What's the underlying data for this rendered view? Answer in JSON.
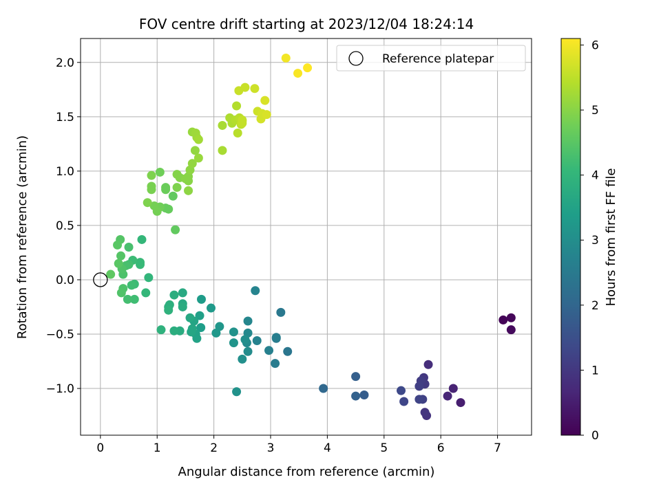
{
  "chart_data": {
    "type": "scatter",
    "title": "FOV centre drift starting at 2023/12/04 18:24:14",
    "xlabel": "Angular distance from reference (arcmin)",
    "ylabel": "Rotation from reference (arcmin)",
    "xlim": [
      -0.35,
      7.6
    ],
    "ylim": [
      -1.43,
      2.22
    ],
    "xticks": [
      0,
      1,
      2,
      3,
      4,
      5,
      6,
      7
    ],
    "xtick_labels": [
      "0",
      "1",
      "2",
      "3",
      "4",
      "5",
      "6",
      "7"
    ],
    "yticks": [
      -1.0,
      -0.5,
      0.0,
      0.5,
      1.0,
      1.5,
      2.0
    ],
    "ytick_labels": [
      "−1.0",
      "−0.5",
      "0.0",
      "0.5",
      "1.0",
      "1.5",
      "2.0"
    ],
    "grid": true,
    "legend": {
      "position": "top-right",
      "entries": [
        "Reference platepar"
      ]
    },
    "reference_point": {
      "x": 0,
      "y": 0,
      "label": "Reference platepar"
    },
    "colorbar": {
      "label": "Hours from first FF file",
      "colormap": "viridis",
      "range": [
        0,
        6.1
      ],
      "ticks": [
        0,
        1,
        2,
        3,
        4,
        5,
        6
      ],
      "tick_labels": [
        "0",
        "1",
        "2",
        "3",
        "4",
        "5",
        "6"
      ]
    },
    "colors": {
      "viridis": [
        "#440154",
        "#482878",
        "#3e4989",
        "#31688e",
        "#26828e",
        "#1f9e89",
        "#35b779",
        "#6ece58",
        "#b5de2b",
        "#fde725"
      ],
      "grid": "#b0b0b0",
      "reference_marker": "#000000"
    },
    "series": [
      {
        "points": [
          {
            "x": 7.1,
            "y": -0.37,
            "h": 0.05
          },
          {
            "x": 7.24,
            "y": -0.35,
            "h": 0.1
          },
          {
            "x": 7.24,
            "y": -0.46,
            "h": 0.15
          },
          {
            "x": 6.35,
            "y": -1.13,
            "h": 0.5
          },
          {
            "x": 6.22,
            "y": -1.0,
            "h": 0.6
          },
          {
            "x": 6.12,
            "y": -1.07,
            "h": 0.65
          },
          {
            "x": 5.78,
            "y": -0.78,
            "h": 0.8
          },
          {
            "x": 5.75,
            "y": -1.25,
            "h": 0.9
          },
          {
            "x": 5.72,
            "y": -1.22,
            "h": 0.95
          },
          {
            "x": 5.7,
            "y": -0.9,
            "h": 1.0
          },
          {
            "x": 5.72,
            "y": -0.96,
            "h": 1.05
          },
          {
            "x": 5.65,
            "y": -0.93,
            "h": 1.1
          },
          {
            "x": 5.62,
            "y": -0.98,
            "h": 1.15
          },
          {
            "x": 5.68,
            "y": -1.1,
            "h": 1.2
          },
          {
            "x": 5.62,
            "y": -1.1,
            "h": 1.25
          },
          {
            "x": 5.35,
            "y": -1.12,
            "h": 1.3
          },
          {
            "x": 5.3,
            "y": -1.02,
            "h": 1.35
          },
          {
            "x": 4.65,
            "y": -1.06,
            "h": 1.8
          },
          {
            "x": 4.5,
            "y": -0.89,
            "h": 1.85
          },
          {
            "x": 4.5,
            "y": -1.07,
            "h": 1.9
          },
          {
            "x": 3.93,
            "y": -1.0,
            "h": 2.05
          },
          {
            "x": 3.3,
            "y": -0.66,
            "h": 2.4
          },
          {
            "x": 3.18,
            "y": -0.3,
            "h": 2.45
          },
          {
            "x": 3.1,
            "y": -0.54,
            "h": 2.5
          },
          {
            "x": 3.08,
            "y": -0.77,
            "h": 2.55
          },
          {
            "x": 3.1,
            "y": -0.53,
            "h": 2.6
          },
          {
            "x": 2.97,
            "y": -0.65,
            "h": 2.65
          },
          {
            "x": 2.76,
            "y": -0.56,
            "h": 2.7
          },
          {
            "x": 2.73,
            "y": -0.1,
            "h": 2.75
          },
          {
            "x": 2.6,
            "y": -0.38,
            "h": 2.8
          },
          {
            "x": 2.6,
            "y": -0.49,
            "h": 2.85
          },
          {
            "x": 2.58,
            "y": -0.58,
            "h": 2.9
          },
          {
            "x": 2.6,
            "y": -0.66,
            "h": 2.95
          },
          {
            "x": 2.55,
            "y": -0.55,
            "h": 3.0
          },
          {
            "x": 2.5,
            "y": -0.73,
            "h": 3.05
          },
          {
            "x": 2.4,
            "y": -1.03,
            "h": 3.1
          },
          {
            "x": 2.35,
            "y": -0.48,
            "h": 3.1
          },
          {
            "x": 2.35,
            "y": -0.58,
            "h": 3.15
          },
          {
            "x": 2.1,
            "y": -0.43,
            "h": 3.2
          },
          {
            "x": 2.04,
            "y": -0.49,
            "h": 3.25
          },
          {
            "x": 1.95,
            "y": -0.26,
            "h": 3.3
          },
          {
            "x": 1.78,
            "y": -0.18,
            "h": 3.35
          },
          {
            "x": 1.77,
            "y": -0.44,
            "h": 3.4
          },
          {
            "x": 1.75,
            "y": -0.33,
            "h": 3.45
          },
          {
            "x": 1.7,
            "y": -0.54,
            "h": 3.5
          },
          {
            "x": 1.68,
            "y": -0.5,
            "h": 3.5
          },
          {
            "x": 1.65,
            "y": -0.38,
            "h": 3.55
          },
          {
            "x": 1.62,
            "y": -0.45,
            "h": 3.6
          },
          {
            "x": 1.6,
            "y": -0.48,
            "h": 3.6
          },
          {
            "x": 1.58,
            "y": -0.35,
            "h": 3.65
          },
          {
            "x": 1.45,
            "y": -0.12,
            "h": 3.7
          },
          {
            "x": 1.45,
            "y": -0.22,
            "h": 3.7
          },
          {
            "x": 1.45,
            "y": -0.25,
            "h": 3.75
          },
          {
            "x": 1.4,
            "y": -0.47,
            "h": 3.75
          },
          {
            "x": 1.3,
            "y": -0.47,
            "h": 3.8
          },
          {
            "x": 1.3,
            "y": -0.14,
            "h": 3.8
          },
          {
            "x": 1.22,
            "y": -0.23,
            "h": 3.85
          },
          {
            "x": 1.2,
            "y": -0.25,
            "h": 3.85
          },
          {
            "x": 1.2,
            "y": -0.28,
            "h": 3.9
          },
          {
            "x": 1.07,
            "y": -0.46,
            "h": 3.9
          },
          {
            "x": 0.85,
            "y": 0.02,
            "h": 4.0
          },
          {
            "x": 0.8,
            "y": -0.12,
            "h": 4.05
          },
          {
            "x": 0.73,
            "y": 0.37,
            "h": 4.05
          },
          {
            "x": 0.7,
            "y": 0.16,
            "h": 4.1
          },
          {
            "x": 0.7,
            "y": 0.14,
            "h": 4.1
          },
          {
            "x": 0.6,
            "y": -0.04,
            "h": 4.15
          },
          {
            "x": 0.57,
            "y": 0.18,
            "h": 4.15
          },
          {
            "x": 0.6,
            "y": -0.18,
            "h": 4.2
          },
          {
            "x": 0.55,
            "y": -0.05,
            "h": 4.2
          },
          {
            "x": 0.5,
            "y": 0.14,
            "h": 4.25
          },
          {
            "x": 0.48,
            "y": -0.18,
            "h": 4.25
          },
          {
            "x": 0.5,
            "y": 0.3,
            "h": 4.3
          },
          {
            "x": 0.45,
            "y": 0.13,
            "h": 4.3
          },
          {
            "x": 0.4,
            "y": -0.08,
            "h": 4.35
          },
          {
            "x": 0.4,
            "y": 0.05,
            "h": 4.35
          },
          {
            "x": 0.38,
            "y": 0.1,
            "h": 4.4
          },
          {
            "x": 0.37,
            "y": -0.12,
            "h": 4.4
          },
          {
            "x": 0.36,
            "y": 0.22,
            "h": 4.45
          },
          {
            "x": 0.35,
            "y": 0.37,
            "h": 4.45
          },
          {
            "x": 0.32,
            "y": 0.15,
            "h": 4.5
          },
          {
            "x": 0.3,
            "y": 0.32,
            "h": 4.5
          },
          {
            "x": 0.18,
            "y": 0.05,
            "h": 4.55
          },
          {
            "x": 1.32,
            "y": 0.46,
            "h": 4.6
          },
          {
            "x": 1.28,
            "y": 0.77,
            "h": 4.6
          },
          {
            "x": 1.2,
            "y": 0.65,
            "h": 4.65
          },
          {
            "x": 1.15,
            "y": 0.66,
            "h": 4.65
          },
          {
            "x": 1.15,
            "y": 0.85,
            "h": 4.7
          },
          {
            "x": 1.15,
            "y": 0.83,
            "h": 4.7
          },
          {
            "x": 1.05,
            "y": 0.99,
            "h": 4.75
          },
          {
            "x": 1.05,
            "y": 0.67,
            "h": 4.75
          },
          {
            "x": 1.0,
            "y": 0.63,
            "h": 4.8
          },
          {
            "x": 0.95,
            "y": 0.68,
            "h": 4.8
          },
          {
            "x": 0.9,
            "y": 0.83,
            "h": 4.85
          },
          {
            "x": 0.9,
            "y": 0.86,
            "h": 4.85
          },
          {
            "x": 0.9,
            "y": 0.96,
            "h": 4.9
          },
          {
            "x": 0.83,
            "y": 0.71,
            "h": 4.9
          },
          {
            "x": 1.35,
            "y": 0.85,
            "h": 4.9
          },
          {
            "x": 1.35,
            "y": 0.97,
            "h": 4.95
          },
          {
            "x": 1.4,
            "y": 0.94,
            "h": 4.95
          },
          {
            "x": 1.5,
            "y": 0.93,
            "h": 5.0
          },
          {
            "x": 1.55,
            "y": 0.91,
            "h": 5.0
          },
          {
            "x": 1.55,
            "y": 0.95,
            "h": 5.0
          },
          {
            "x": 1.55,
            "y": 0.82,
            "h": 5.05
          },
          {
            "x": 1.58,
            "y": 1.01,
            "h": 5.05
          },
          {
            "x": 1.62,
            "y": 1.07,
            "h": 5.1
          },
          {
            "x": 1.67,
            "y": 1.19,
            "h": 5.1
          },
          {
            "x": 1.73,
            "y": 1.12,
            "h": 5.15
          },
          {
            "x": 1.62,
            "y": 1.36,
            "h": 5.15
          },
          {
            "x": 1.68,
            "y": 1.35,
            "h": 5.2
          },
          {
            "x": 1.7,
            "y": 1.31,
            "h": 5.2
          },
          {
            "x": 1.73,
            "y": 1.29,
            "h": 5.25
          },
          {
            "x": 2.15,
            "y": 1.19,
            "h": 5.3
          },
          {
            "x": 2.15,
            "y": 1.42,
            "h": 5.3
          },
          {
            "x": 2.28,
            "y": 1.49,
            "h": 5.35
          },
          {
            "x": 2.32,
            "y": 1.44,
            "h": 5.35
          },
          {
            "x": 2.38,
            "y": 1.47,
            "h": 5.4
          },
          {
            "x": 2.4,
            "y": 1.6,
            "h": 5.4
          },
          {
            "x": 2.42,
            "y": 1.35,
            "h": 5.45
          },
          {
            "x": 2.45,
            "y": 1.49,
            "h": 5.45
          },
          {
            "x": 2.48,
            "y": 1.43,
            "h": 5.5
          },
          {
            "x": 2.5,
            "y": 1.46,
            "h": 5.5
          },
          {
            "x": 2.5,
            "y": 1.44,
            "h": 5.55
          },
          {
            "x": 2.5,
            "y": 1.47,
            "h": 5.55
          },
          {
            "x": 2.44,
            "y": 1.74,
            "h": 5.6
          },
          {
            "x": 2.55,
            "y": 1.77,
            "h": 5.6
          },
          {
            "x": 2.72,
            "y": 1.76,
            "h": 5.65
          },
          {
            "x": 2.77,
            "y": 1.55,
            "h": 5.65
          },
          {
            "x": 2.83,
            "y": 1.48,
            "h": 5.7
          },
          {
            "x": 2.85,
            "y": 1.53,
            "h": 5.7
          },
          {
            "x": 2.9,
            "y": 1.65,
            "h": 5.75
          },
          {
            "x": 2.93,
            "y": 1.52,
            "h": 5.75
          },
          {
            "x": 3.27,
            "y": 2.04,
            "h": 6.0
          },
          {
            "x": 3.48,
            "y": 1.9,
            "h": 6.05
          },
          {
            "x": 3.65,
            "y": 1.95,
            "h": 6.1
          }
        ]
      }
    ]
  }
}
